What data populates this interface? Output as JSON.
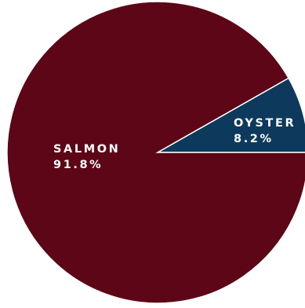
{
  "chart_data": {
    "type": "pie",
    "slices": [
      {
        "label": "OYSTER",
        "value": 8.2,
        "value_label": "8.2%",
        "color": "#0d3a5c"
      },
      {
        "label": "SALMON",
        "value": 91.8,
        "value_label": "91.8%",
        "color": "#5c0617"
      }
    ],
    "title": "",
    "legend": "none",
    "labels_inside": true,
    "slice_border_color": "#ffffff"
  }
}
